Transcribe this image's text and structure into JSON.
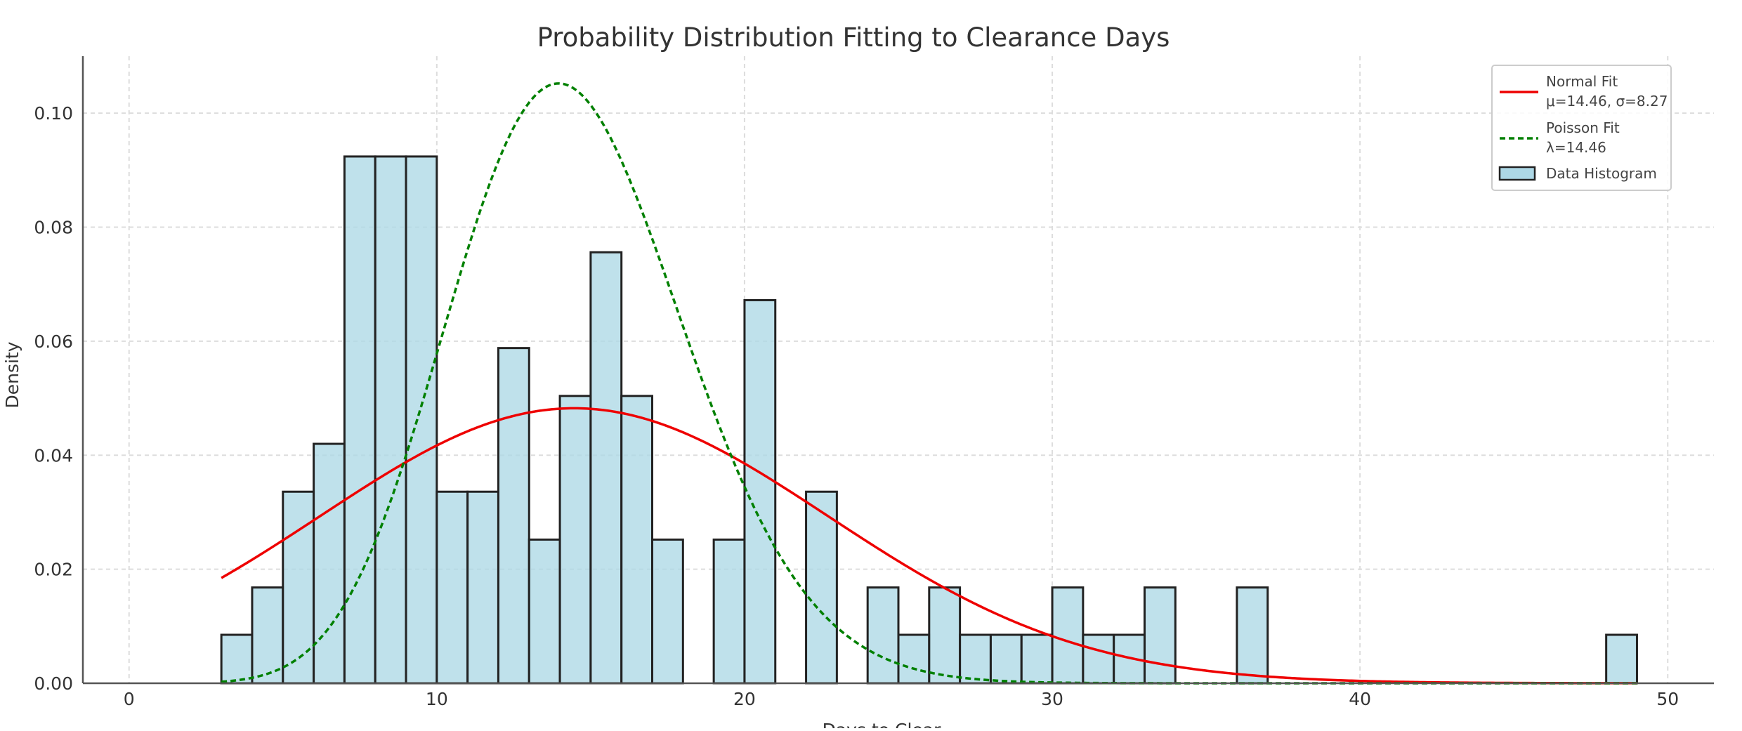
{
  "chart_data": {
    "type": "bar",
    "title": "Probability Distribution Fitting to Clearance Days",
    "xlabel": "Days to Clear",
    "ylabel": "Density",
    "xlim": [
      -1.5,
      51.5
    ],
    "ylim": [
      0,
      0.11
    ],
    "x_ticks": [
      0,
      10,
      20,
      30,
      40,
      50
    ],
    "y_ticks": [
      0.0,
      0.02,
      0.04,
      0.06,
      0.08,
      0.1
    ],
    "x_tick_labels": [
      "0",
      "10",
      "20",
      "30",
      "40",
      "50"
    ],
    "y_tick_labels": [
      "0.00",
      "0.02",
      "0.04",
      "0.06",
      "0.08",
      "0.10"
    ],
    "grid": true,
    "legend_position": "top-right",
    "histogram": {
      "name": "Data Histogram",
      "bin_edges": [
        3,
        4,
        5,
        6,
        7,
        8,
        9,
        10,
        11,
        12,
        13,
        14,
        15,
        16,
        17,
        18,
        19,
        20,
        21,
        22,
        23,
        24,
        25,
        26,
        27,
        28,
        29,
        30,
        31,
        32,
        33,
        34,
        35,
        36,
        37,
        38,
        39,
        40,
        41,
        42,
        43,
        44,
        45,
        46,
        47,
        48,
        49
      ],
      "values": [
        0.0085,
        0.0168,
        0.0336,
        0.042,
        0.0924,
        0.0924,
        0.0924,
        0.0336,
        0.0336,
        0.0588,
        0.0252,
        0.0504,
        0.0756,
        0.0504,
        0.0252,
        0,
        0.0252,
        0.0672,
        0,
        0.0336,
        0,
        0.0168,
        0.0085,
        0.0168,
        0.0085,
        0.0085,
        0.0085,
        0.0168,
        0.0085,
        0.0085,
        0.0168,
        0,
        0,
        0.0168,
        0,
        0,
        0,
        0,
        0,
        0,
        0,
        0,
        0,
        0,
        0,
        0.0085
      ]
    },
    "series": [
      {
        "name": "Normal Fit",
        "label_line2": "μ=14.46, σ=8.27",
        "distribution": "normal",
        "mu": 14.46,
        "sigma": 8.27,
        "x_range": [
          3,
          49
        ],
        "color": "#ee0000",
        "style": "solid"
      },
      {
        "name": "Poisson Fit",
        "label_line2": "λ=14.46",
        "distribution": "poisson",
        "lambda": 14.46,
        "x_range": [
          3,
          49
        ],
        "color": "#008000",
        "style": "dashed"
      }
    ],
    "legend": [
      {
        "label": "Normal Fit",
        "sublabel": "μ=14.46, σ=8.27"
      },
      {
        "label": "Poisson Fit",
        "sublabel": "λ=14.46"
      },
      {
        "label": "Data Histogram"
      }
    ]
  }
}
